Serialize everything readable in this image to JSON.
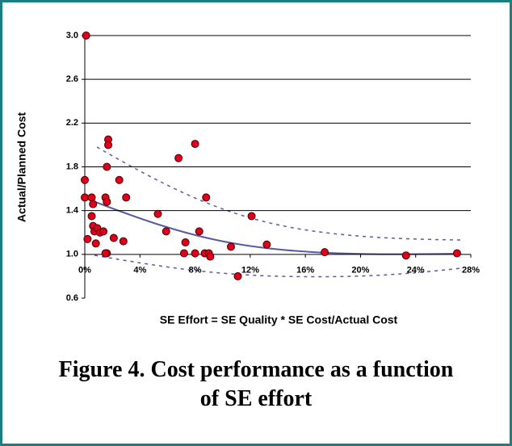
{
  "chart_data": {
    "type": "scatter",
    "xlabel": "SE Effort = SE Quality * SE Cost/Actual Cost",
    "ylabel": "Actual/Planned Cost",
    "caption": [
      "Figure 4.  Cost performance as a function",
      "of SE effort"
    ],
    "color": "#e0001b",
    "grid": true,
    "xlim": [
      0,
      28
    ],
    "ylim": [
      0.6,
      3.0
    ],
    "xticks": [
      {
        "value": 0,
        "label": "0%"
      },
      {
        "value": 4,
        "label": "4%"
      },
      {
        "value": 8,
        "label": "8%"
      },
      {
        "value": 12,
        "label": "12%"
      },
      {
        "value": 16,
        "label": "16%"
      },
      {
        "value": 20,
        "label": "20%"
      },
      {
        "value": 24,
        "label": "24%"
      },
      {
        "value": 28,
        "label": "28%"
      }
    ],
    "yticks": [
      0.6,
      {
        "value": 1,
        "label": "1.0"
      },
      1.4,
      1.8,
      2.2,
      2.6,
      {
        "value": 3,
        "label": "3.0"
      }
    ],
    "x": [
      0.1,
      0,
      0,
      0.2,
      0.5,
      0.6,
      0.5,
      0.6,
      0.7,
      0.8,
      0.9,
      1.1,
      1.35,
      1.6,
      1.5,
      1.5,
      1.6,
      1.7,
      1.7,
      1.6,
      2.1,
      2.5,
      2.8,
      3.0,
      5.3,
      5.9,
      6.8,
      7.2,
      7.3,
      8.0,
      8.0,
      8.3,
      8.7,
      8.8,
      9.0,
      9.1,
      10.6,
      11.1,
      12.1,
      13.2,
      17.4,
      23.3,
      27.0
    ],
    "values": [
      3.0,
      1.68,
      1.52,
      1.14,
      1.52,
      1.46,
      1.35,
      1.26,
      1.21,
      1.1,
      1.24,
      1.2,
      1.21,
      1.01,
      1.01,
      1.52,
      1.48,
      2.05,
      2.0,
      1.8,
      1.15,
      1.68,
      1.12,
      1.52,
      1.37,
      1.21,
      1.88,
      1.01,
      1.11,
      1.01,
      2.01,
      1.21,
      1.01,
      1.52,
      1.01,
      0.98,
      1.07,
      0.8,
      1.35,
      1.09,
      1.02,
      0.99,
      1.01
    ]
  }
}
